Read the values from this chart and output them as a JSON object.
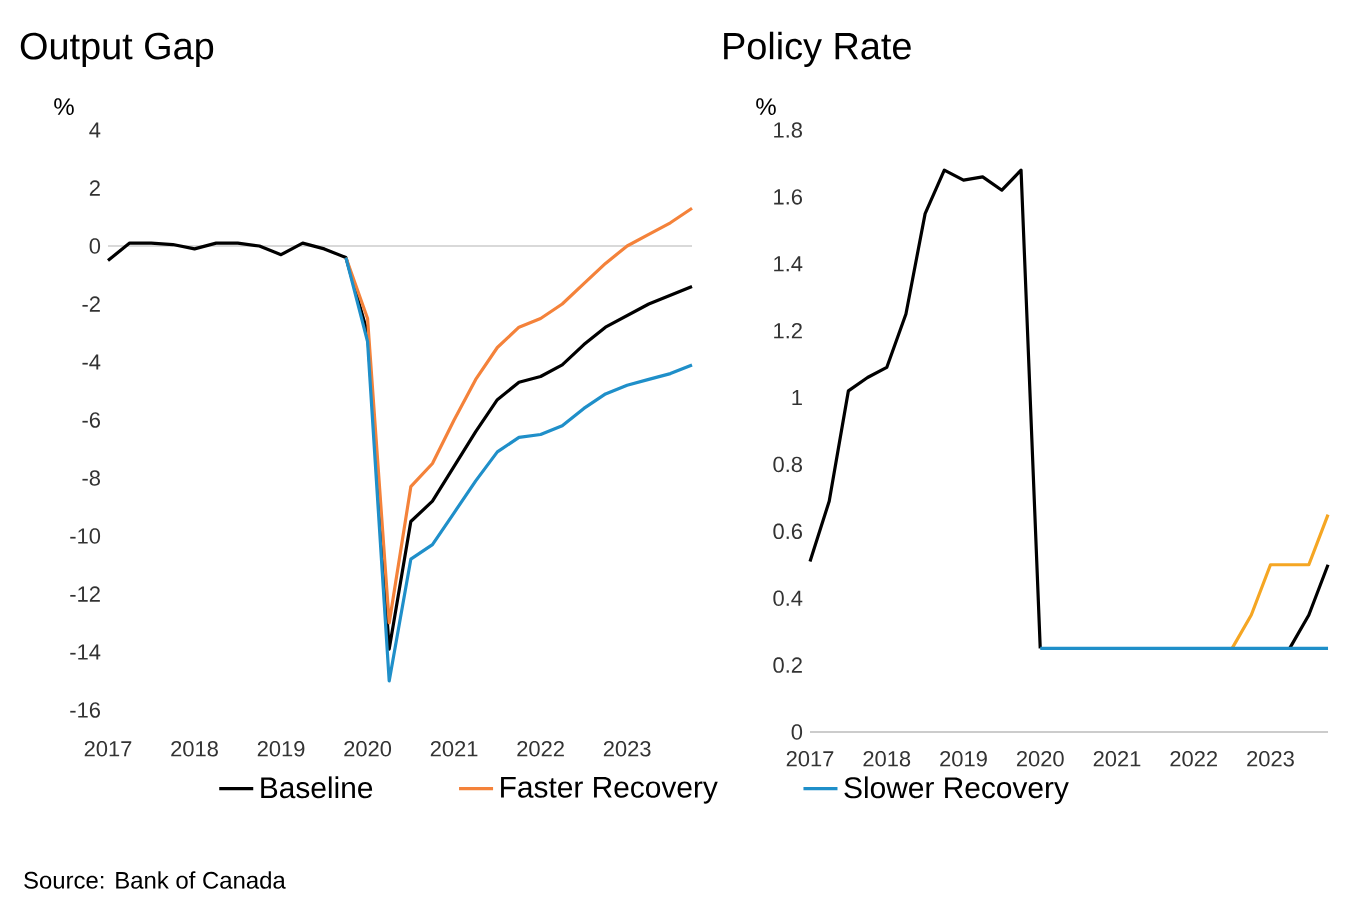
{
  "chart_data": [
    {
      "type": "line",
      "title": "Output Gap",
      "ylabel": "%",
      "x": [
        2017,
        2017.25,
        2017.5,
        2017.75,
        2018,
        2018.25,
        2018.5,
        2018.75,
        2019,
        2019.25,
        2019.5,
        2019.75,
        2020,
        2020.25,
        2020.5,
        2020.75,
        2021,
        2021.25,
        2021.5,
        2021.75,
        2022,
        2022.25,
        2022.5,
        2022.75,
        2023,
        2023.25,
        2023.5,
        2023.75
      ],
      "series": [
        {
          "name": "Baseline",
          "color": "#000000",
          "values": [
            -0.5,
            0.1,
            0.1,
            0.05,
            -0.1,
            0.1,
            0.1,
            0,
            -0.3,
            0.1,
            -0.1,
            -0.4,
            -3.0,
            -13.9,
            -9.5,
            -8.8,
            -7.6,
            -6.4,
            -5.3,
            -4.7,
            -4.5,
            -4.1,
            -3.4,
            -2.8,
            -2.4,
            -2.0,
            -1.7,
            -1.4
          ]
        },
        {
          "name": "Faster Recovery",
          "color": "#f4823a",
          "values": [
            null,
            null,
            null,
            null,
            null,
            null,
            null,
            null,
            null,
            null,
            null,
            -0.4,
            -2.5,
            -13.0,
            -8.3,
            -7.5,
            -6.0,
            -4.6,
            -3.5,
            -2.8,
            -2.5,
            -2.0,
            -1.3,
            -0.6,
            0.0,
            0.4,
            0.8,
            1.3
          ]
        },
        {
          "name": "Slower Recovery",
          "color": "#1f8fc9",
          "values": [
            null,
            null,
            null,
            null,
            null,
            null,
            null,
            null,
            null,
            null,
            null,
            -0.4,
            -3.3,
            -15.0,
            -10.8,
            -10.3,
            -9.2,
            -8.1,
            -7.1,
            -6.6,
            -6.5,
            -6.2,
            -5.6,
            -5.1,
            -4.8,
            -4.6,
            -4.4,
            -4.1
          ]
        }
      ],
      "xlim": [
        2017,
        2023.75
      ],
      "xticks": [
        2017,
        2018,
        2019,
        2020,
        2021,
        2022,
        2023
      ],
      "ylim": [
        -16,
        4
      ],
      "yticks": [
        -16,
        -14,
        -12,
        -10,
        -8,
        -6,
        -4,
        -2,
        0,
        2,
        4
      ],
      "ref_lines": [
        {
          "axis": "y",
          "value": 0,
          "color": "#d9d9d9"
        }
      ],
      "legend": "bottom",
      "annotations": [
        "Source: Bank of Canada"
      ]
    },
    {
      "type": "line",
      "title": "Policy Rate",
      "ylabel": "%",
      "x": [
        2017,
        2017.25,
        2017.5,
        2017.75,
        2018,
        2018.25,
        2018.5,
        2018.75,
        2019,
        2019.25,
        2019.5,
        2019.75,
        2020,
        2020.25,
        2020.5,
        2020.75,
        2021,
        2021.25,
        2021.5,
        2021.75,
        2022,
        2022.25,
        2022.5,
        2022.75,
        2023,
        2023.25,
        2023.5,
        2023.75
      ],
      "series": [
        {
          "color": "#000000",
          "values": [
            0.51,
            0.69,
            1.02,
            1.06,
            1.09,
            1.25,
            1.55,
            1.68,
            1.65,
            1.66,
            1.62,
            1.68,
            0.25,
            null,
            null,
            null,
            null,
            null,
            null,
            null,
            null,
            null,
            null,
            null,
            null,
            0.25,
            0.35,
            0.5
          ]
        },
        {
          "color": "#f5a623",
          "values": [
            null,
            null,
            null,
            null,
            null,
            null,
            null,
            null,
            null,
            null,
            null,
            null,
            null,
            null,
            null,
            null,
            null,
            null,
            null,
            null,
            null,
            null,
            0.25,
            0.35,
            0.5,
            0.5,
            0.5,
            0.65
          ]
        },
        {
          "color": "#1f8fc9",
          "values": [
            null,
            null,
            null,
            null,
            null,
            null,
            null,
            null,
            null,
            null,
            null,
            null,
            0.25,
            0.25,
            0.25,
            0.25,
            0.25,
            0.25,
            0.25,
            0.25,
            0.25,
            0.25,
            0.25,
            0.25,
            0.25,
            0.25,
            0.25,
            0.25
          ]
        }
      ],
      "xlim": [
        2017,
        2023.75
      ],
      "xticks": [
        2017,
        2018,
        2019,
        2020,
        2021,
        2022,
        2023
      ],
      "ylim": [
        0,
        1.8
      ],
      "yticks": [
        0,
        0.2,
        0.4,
        0.6,
        0.8,
        1,
        1.2,
        1.4,
        1.6,
        1.8
      ]
    }
  ]
}
